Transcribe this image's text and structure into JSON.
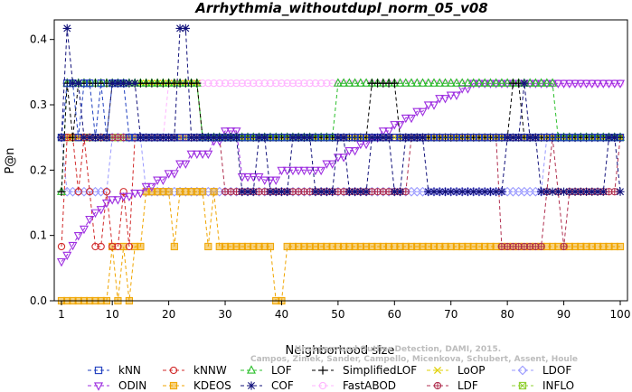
{
  "chart_data": {
    "type": "line",
    "title": "Arrhythmia_withoutdupl_norm_05_v08",
    "xlabel": "Neighborhood size",
    "ylabel": "P@n",
    "xlim": [
      1,
      100
    ],
    "ylim": [
      0,
      0.43
    ],
    "x_ticks": [
      1,
      10,
      20,
      30,
      40,
      50,
      60,
      70,
      80,
      90,
      100
    ],
    "y_ticks": [
      0.0,
      0.1,
      0.2,
      0.3,
      0.4
    ],
    "grid": false,
    "legend_position": "bottom",
    "watermark": [
      "Campos, Zimek, Sander, Campello, Micenkova, Schubert, Assent, Houle",
      "Unsupervised Outlier Detection, DAMI, 2015."
    ],
    "series": [
      {
        "name": "kNN",
        "color": "#1f3fbf",
        "marker": "square",
        "points": [
          [
            1,
            0.25
          ],
          [
            2,
            0.333
          ],
          [
            3,
            0.333
          ],
          [
            4,
            0.25
          ],
          [
            5,
            0.333
          ],
          [
            6,
            0.333
          ],
          [
            7,
            0.25
          ],
          [
            8,
            0.333
          ],
          [
            9,
            0.25
          ],
          [
            10,
            0.333
          ],
          [
            11,
            0.333
          ],
          [
            12,
            0.333
          ],
          [
            13,
            0.25
          ],
          [
            15,
            0.25
          ],
          [
            20,
            0.25
          ],
          [
            30,
            0.25
          ],
          [
            40,
            0.25
          ],
          [
            50,
            0.25
          ],
          [
            60,
            0.25
          ],
          [
            70,
            0.25
          ],
          [
            80,
            0.25
          ],
          [
            90,
            0.25
          ],
          [
            100,
            0.25
          ]
        ]
      },
      {
        "name": "kNNW",
        "color": "#d12b2b",
        "marker": "circle",
        "points": [
          [
            1,
            0.083
          ],
          [
            2,
            0.25
          ],
          [
            3,
            0.25
          ],
          [
            4,
            0.167
          ],
          [
            5,
            0.25
          ],
          [
            6,
            0.167
          ],
          [
            7,
            0.083
          ],
          [
            8,
            0.083
          ],
          [
            9,
            0.167
          ],
          [
            10,
            0.083
          ],
          [
            11,
            0.083
          ],
          [
            12,
            0.167
          ],
          [
            13,
            0.083
          ],
          [
            14,
            0.25
          ],
          [
            15,
            0.25
          ],
          [
            20,
            0.25
          ],
          [
            30,
            0.25
          ],
          [
            40,
            0.25
          ],
          [
            50,
            0.25
          ],
          [
            60,
            0.25
          ],
          [
            70,
            0.25
          ],
          [
            80,
            0.25
          ],
          [
            90,
            0.25
          ],
          [
            100,
            0.25
          ]
        ]
      },
      {
        "name": "LOF",
        "color": "#2bbf2b",
        "marker": "triangle-up",
        "points": [
          [
            1,
            0.167
          ],
          [
            2,
            0.333
          ],
          [
            3,
            0.333
          ],
          [
            5,
            0.333
          ],
          [
            10,
            0.333
          ],
          [
            20,
            0.333
          ],
          [
            25,
            0.333
          ],
          [
            26,
            0.25
          ],
          [
            30,
            0.25
          ],
          [
            40,
            0.25
          ],
          [
            49,
            0.25
          ],
          [
            50,
            0.333
          ],
          [
            55,
            0.333
          ],
          [
            60,
            0.333
          ],
          [
            65,
            0.333
          ],
          [
            70,
            0.333
          ],
          [
            75,
            0.333
          ],
          [
            80,
            0.333
          ],
          [
            85,
            0.333
          ],
          [
            88,
            0.333
          ],
          [
            89,
            0.25
          ],
          [
            95,
            0.25
          ],
          [
            100,
            0.25
          ]
        ]
      },
      {
        "name": "SimplifiedLOF",
        "color": "#000000",
        "marker": "plus",
        "points": [
          [
            1,
            0.167
          ],
          [
            2,
            0.333
          ],
          [
            3,
            0.25
          ],
          [
            4,
            0.333
          ],
          [
            10,
            0.333
          ],
          [
            20,
            0.333
          ],
          [
            25,
            0.333
          ],
          [
            26,
            0.25
          ],
          [
            30,
            0.25
          ],
          [
            40,
            0.25
          ],
          [
            55,
            0.25
          ],
          [
            56,
            0.333
          ],
          [
            60,
            0.333
          ],
          [
            61,
            0.25
          ],
          [
            70,
            0.25
          ],
          [
            80,
            0.25
          ],
          [
            81,
            0.333
          ],
          [
            82,
            0.333
          ],
          [
            83,
            0.25
          ],
          [
            90,
            0.25
          ],
          [
            100,
            0.25
          ]
        ]
      },
      {
        "name": "LoOP",
        "color": "#e0d000",
        "marker": "x",
        "points": [
          [
            1,
            0.25
          ],
          [
            5,
            0.25
          ],
          [
            10,
            0.333
          ],
          [
            20,
            0.333
          ],
          [
            25,
            0.333
          ],
          [
            26,
            0.25
          ],
          [
            40,
            0.25
          ],
          [
            60,
            0.25
          ],
          [
            80,
            0.25
          ],
          [
            100,
            0.25
          ]
        ]
      },
      {
        "name": "LDOF",
        "color": "#9a9aff",
        "marker": "diamond",
        "points": [
          [
            1,
            0.25
          ],
          [
            2,
            0.167
          ],
          [
            5,
            0.167
          ],
          [
            8,
            0.167
          ],
          [
            10,
            0.25
          ],
          [
            15,
            0.25
          ],
          [
            16,
            0.167
          ],
          [
            20,
            0.167
          ],
          [
            25,
            0.167
          ],
          [
            30,
            0.167
          ],
          [
            40,
            0.167
          ],
          [
            50,
            0.167
          ],
          [
            60,
            0.167
          ],
          [
            65,
            0.167
          ],
          [
            70,
            0.167
          ],
          [
            80,
            0.167
          ],
          [
            86,
            0.167
          ],
          [
            87,
            0.25
          ],
          [
            90,
            0.25
          ],
          [
            100,
            0.25
          ]
        ]
      },
      {
        "name": "ODIN",
        "color": "#9d2de0",
        "marker": "triangle-down",
        "points": [
          [
            1,
            0.06
          ],
          [
            2,
            0.07
          ],
          [
            3,
            0.085
          ],
          [
            4,
            0.1
          ],
          [
            5,
            0.11
          ],
          [
            6,
            0.125
          ],
          [
            7,
            0.135
          ],
          [
            8,
            0.14
          ],
          [
            9,
            0.15
          ],
          [
            10,
            0.155
          ],
          [
            12,
            0.16
          ],
          [
            14,
            0.165
          ],
          [
            16,
            0.175
          ],
          [
            18,
            0.185
          ],
          [
            20,
            0.195
          ],
          [
            22,
            0.21
          ],
          [
            24,
            0.225
          ],
          [
            26,
            0.225
          ],
          [
            28,
            0.245
          ],
          [
            30,
            0.26
          ],
          [
            32,
            0.26
          ],
          [
            33,
            0.19
          ],
          [
            36,
            0.19
          ],
          [
            37,
            0.185
          ],
          [
            40,
            0.2
          ],
          [
            46,
            0.2
          ],
          [
            48,
            0.21
          ],
          [
            50,
            0.22
          ],
          [
            52,
            0.23
          ],
          [
            54,
            0.24
          ],
          [
            56,
            0.25
          ],
          [
            58,
            0.26
          ],
          [
            60,
            0.27
          ],
          [
            62,
            0.28
          ],
          [
            64,
            0.29
          ],
          [
            66,
            0.3
          ],
          [
            68,
            0.31
          ],
          [
            70,
            0.315
          ],
          [
            72,
            0.325
          ],
          [
            74,
            0.333
          ],
          [
            85,
            0.333
          ],
          [
            90,
            0.333
          ],
          [
            100,
            0.333
          ]
        ]
      },
      {
        "name": "KDEOS",
        "color": "#f0a500",
        "marker": "square-filled",
        "points": [
          [
            1,
            0.0
          ],
          [
            5,
            0.0
          ],
          [
            9,
            0.0
          ],
          [
            10,
            0.083
          ],
          [
            11,
            0.0
          ],
          [
            12,
            0.083
          ],
          [
            13,
            0.0
          ],
          [
            14,
            0.083
          ],
          [
            15,
            0.083
          ],
          [
            16,
            0.167
          ],
          [
            18,
            0.167
          ],
          [
            20,
            0.167
          ],
          [
            21,
            0.083
          ],
          [
            22,
            0.167
          ],
          [
            25,
            0.167
          ],
          [
            27,
            0.083
          ],
          [
            28,
            0.167
          ],
          [
            29,
            0.083
          ],
          [
            30,
            0.083
          ],
          [
            38,
            0.083
          ],
          [
            39,
            0.0
          ],
          [
            40,
            0.0
          ],
          [
            41,
            0.083
          ],
          [
            50,
            0.083
          ],
          [
            60,
            0.083
          ],
          [
            70,
            0.083
          ],
          [
            80,
            0.083
          ],
          [
            90,
            0.083
          ],
          [
            100,
            0.083
          ]
        ]
      },
      {
        "name": "COF",
        "color": "#11117a",
        "marker": "asterisk",
        "points": [
          [
            1,
            0.25
          ],
          [
            2,
            0.417
          ],
          [
            3,
            0.333
          ],
          [
            5,
            0.25
          ],
          [
            8,
            0.25
          ],
          [
            10,
            0.333
          ],
          [
            15,
            0.25
          ],
          [
            20,
            0.25
          ],
          [
            22,
            0.417
          ],
          [
            24,
            0.25
          ],
          [
            30,
            0.25
          ],
          [
            33,
            0.167
          ],
          [
            36,
            0.25
          ],
          [
            38,
            0.167
          ],
          [
            42,
            0.25
          ],
          [
            46,
            0.167
          ],
          [
            50,
            0.25
          ],
          [
            52,
            0.167
          ],
          [
            56,
            0.25
          ],
          [
            60,
            0.167
          ],
          [
            62,
            0.25
          ],
          [
            66,
            0.167
          ],
          [
            70,
            0.167
          ],
          [
            75,
            0.167
          ],
          [
            80,
            0.25
          ],
          [
            83,
            0.333
          ],
          [
            84,
            0.25
          ],
          [
            86,
            0.167
          ],
          [
            90,
            0.167
          ],
          [
            95,
            0.167
          ],
          [
            98,
            0.25
          ],
          [
            100,
            0.167
          ]
        ]
      },
      {
        "name": "FastABOD",
        "color": "#ffb4ff",
        "marker": "circle-light",
        "points": [
          [
            1,
            0.25
          ],
          [
            5,
            0.25
          ],
          [
            10,
            0.25
          ],
          [
            20,
            0.333
          ],
          [
            30,
            0.333
          ],
          [
            40,
            0.333
          ],
          [
            50,
            0.333
          ],
          [
            60,
            0.333
          ],
          [
            70,
            0.333
          ],
          [
            80,
            0.333
          ],
          [
            90,
            0.333
          ],
          [
            100,
            0.333
          ]
        ]
      },
      {
        "name": "LDF",
        "color": "#b03050",
        "marker": "circle-plus",
        "points": [
          [
            1,
            0.25
          ],
          [
            5,
            0.25
          ],
          [
            10,
            0.25
          ],
          [
            20,
            0.25
          ],
          [
            25,
            0.25
          ],
          [
            30,
            0.167
          ],
          [
            40,
            0.167
          ],
          [
            50,
            0.167
          ],
          [
            60,
            0.167
          ],
          [
            63,
            0.25
          ],
          [
            70,
            0.25
          ],
          [
            78,
            0.25
          ],
          [
            79,
            0.083
          ],
          [
            85,
            0.083
          ],
          [
            87,
            0.167
          ],
          [
            88,
            0.25
          ],
          [
            89,
            0.167
          ],
          [
            90,
            0.083
          ],
          [
            91,
            0.167
          ],
          [
            95,
            0.167
          ],
          [
            100,
            0.25
          ]
        ]
      },
      {
        "name": "INFLO",
        "color": "#90d030",
        "marker": "boxed-x",
        "points": [
          [
            1,
            0.25
          ],
          [
            5,
            0.25
          ],
          [
            10,
            0.25
          ],
          [
            20,
            0.25
          ],
          [
            30,
            0.25
          ],
          [
            40,
            0.25
          ],
          [
            50,
            0.25
          ],
          [
            60,
            0.25
          ],
          [
            70,
            0.25
          ],
          [
            80,
            0.25
          ],
          [
            90,
            0.25
          ],
          [
            100,
            0.25
          ]
        ]
      }
    ]
  }
}
